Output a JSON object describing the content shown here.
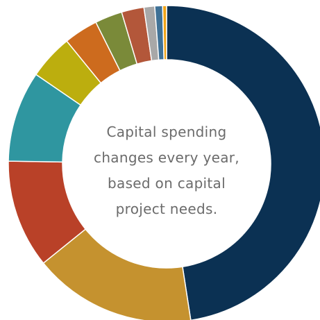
{
  "chart_data": {
    "type": "pie",
    "title": "",
    "center_text": [
      "Capital spending",
      "changes every year,",
      "based on capital",
      "project needs."
    ],
    "slices": [
      {
        "value": 47.7,
        "color": "#0b3153"
      },
      {
        "value": 16.7,
        "color": "#c5922f"
      },
      {
        "value": 11.1,
        "color": "#b94128"
      },
      {
        "value": 9.3,
        "color": "#2f96a0"
      },
      {
        "value": 4.6,
        "color": "#bcae0e"
      },
      {
        "value": 3.5,
        "color": "#cd6b1e"
      },
      {
        "value": 2.8,
        "color": "#7a8a39"
      },
      {
        "value": 2.3,
        "color": "#b3573a"
      },
      {
        "value": 1.1,
        "color": "#a8a8a8"
      },
      {
        "value": 0.8,
        "color": "#3f7196"
      },
      {
        "value": 0.4,
        "color": "#f0a418"
      }
    ]
  }
}
